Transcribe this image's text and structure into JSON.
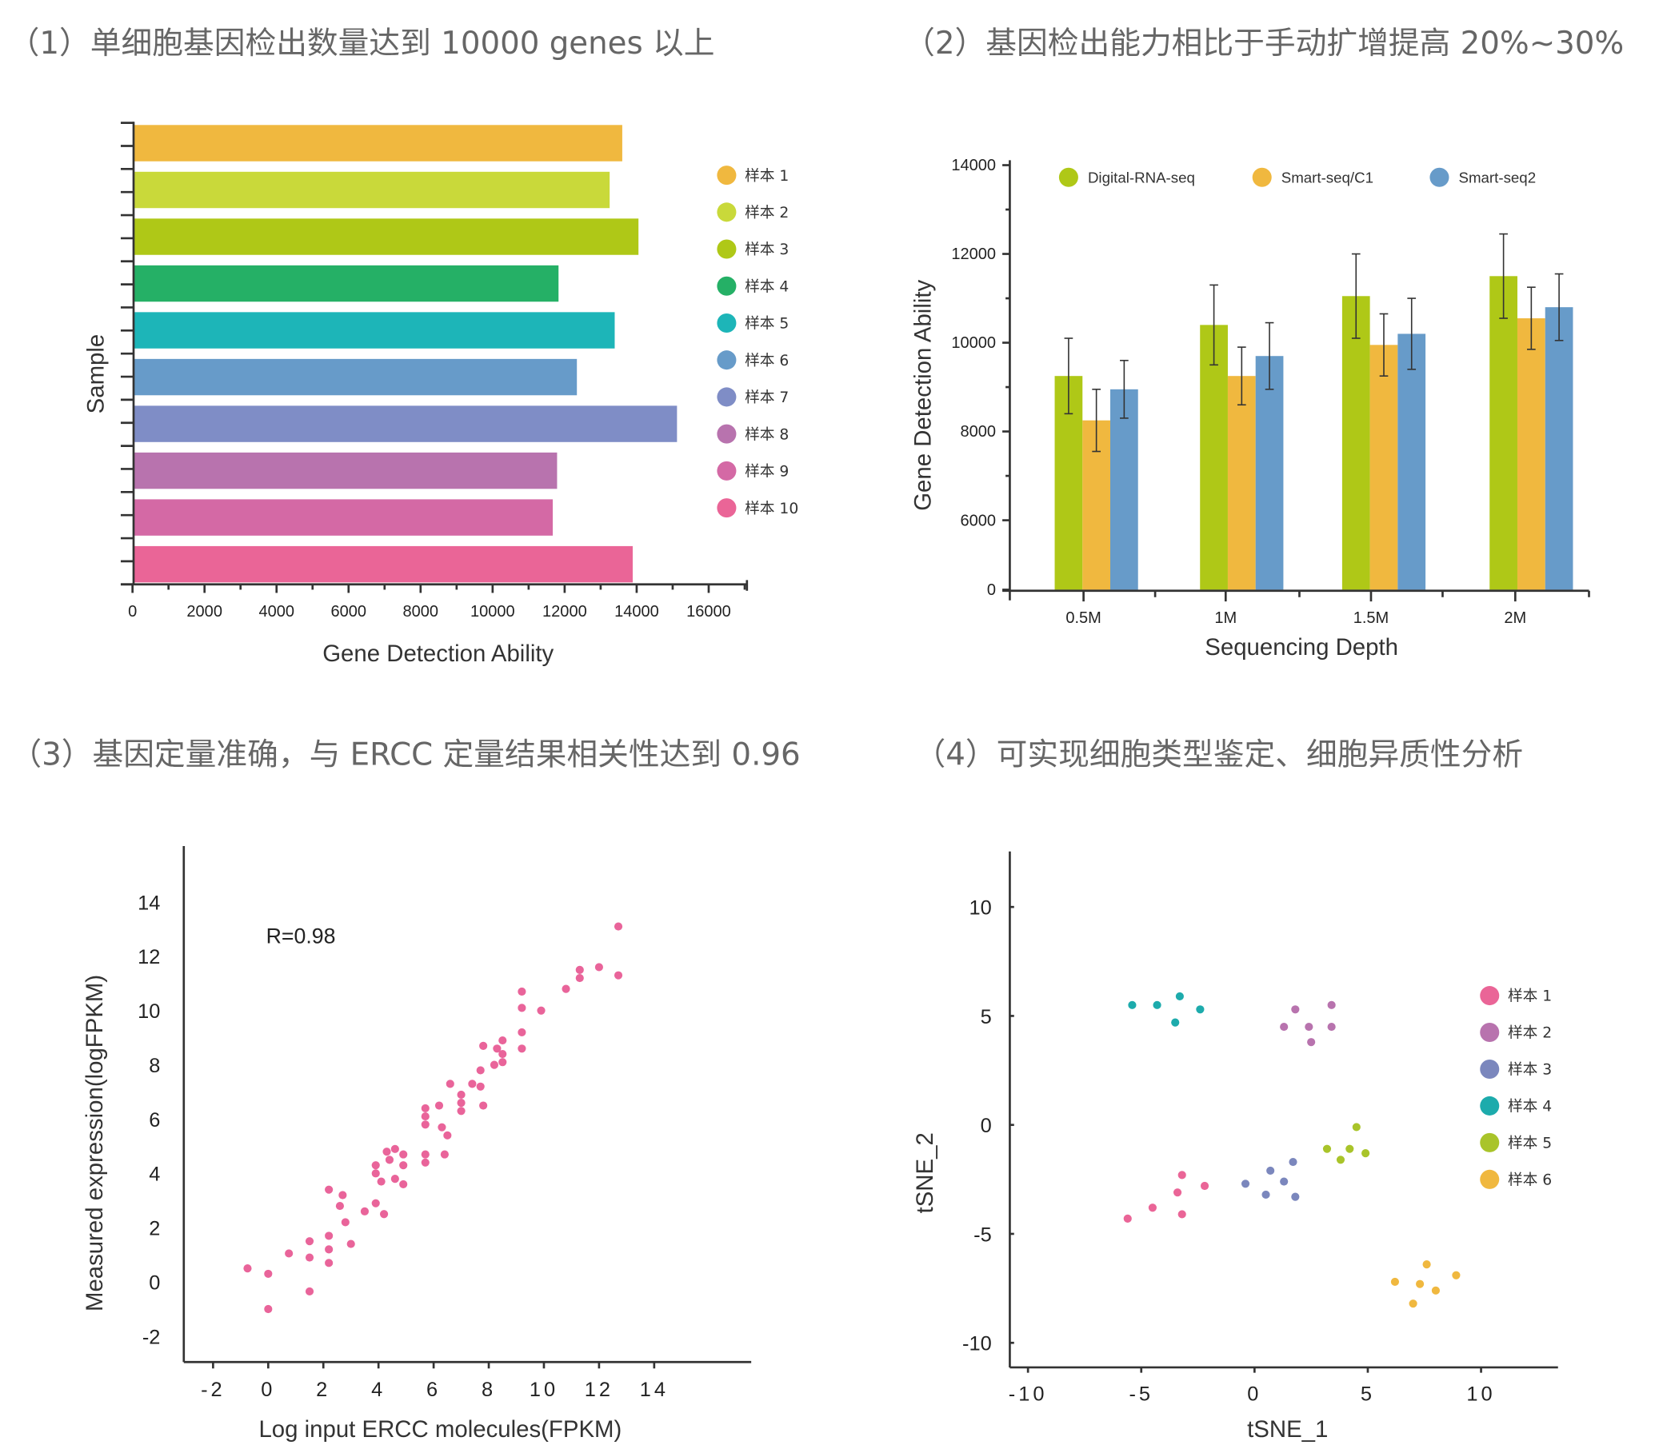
{
  "headings": [
    "（1）单细胞基因检出数量达到 10000 genes 以上",
    "（2）基因检出能力相比于手动扩增提高 20%~30%",
    "（3）基因定量准确，与 ERCC 定量结果相关性达到 0.96",
    "（4）可实现细胞类型鉴定、细胞异质性分析"
  ],
  "chart_data": [
    {
      "type": "bar",
      "orientation": "horizontal",
      "xlabel": "Gene Detection Ability",
      "ylabel": "Sample",
      "xlim": [
        0,
        17000
      ],
      "xticks": [
        0,
        2000,
        4000,
        6000,
        8000,
        10000,
        12000,
        14000,
        16000
      ],
      "legend_position": "right",
      "categories": [
        "样本 1",
        "样本 2",
        "样本 3",
        "样本 4",
        "样本 5",
        "样本 6",
        "样本 7",
        "样本 8",
        "样本 9",
        "样本 10"
      ],
      "values": [
        13600,
        13250,
        14050,
        11830,
        13390,
        12340,
        15120,
        11790,
        11670,
        13890
      ],
      "colors": [
        "#f0b83f",
        "#c9d93a",
        "#afc817",
        "#25b066",
        "#1db5b8",
        "#679bc9",
        "#7f8dc6",
        "#b873ae",
        "#d469a5",
        "#ea6597"
      ]
    },
    {
      "type": "bar",
      "xlabel": "Sequencing Depth",
      "ylabel": "Gene Detection Ability",
      "yaxis_break": [
        0,
        6000
      ],
      "ylim": [
        0,
        14000
      ],
      "yticks": [
        0,
        6000,
        8000,
        10000,
        12000,
        14000
      ],
      "legend_position": "top",
      "categories": [
        "0.5M",
        "1M",
        "1.5M",
        "2M"
      ],
      "series": [
        {
          "name": "Digital-RNA-seq",
          "color": "#afc817",
          "values": [
            9250,
            10400,
            11050,
            11500
          ],
          "errors": [
            850,
            900,
            950,
            950
          ]
        },
        {
          "name": "Smart-seq/C1",
          "color": "#f0b83f",
          "values": [
            8250,
            9250,
            9950,
            10550
          ],
          "errors": [
            700,
            650,
            700,
            700
          ]
        },
        {
          "name": "Smart-seq2",
          "color": "#679bc9",
          "values": [
            8950,
            9700,
            10200,
            10800
          ],
          "errors": [
            650,
            750,
            800,
            750
          ]
        }
      ]
    },
    {
      "type": "scatter",
      "xlabel": "Log input ERCC molecules(FPKM)",
      "ylabel": "Measured expression(logFPKM)",
      "annotation": "R=0.98",
      "xticks": [
        -2,
        0,
        2,
        4,
        6,
        8,
        10,
        12,
        14
      ],
      "yticks": [
        -2,
        0,
        2,
        4,
        6,
        8,
        10,
        12,
        14
      ],
      "color": "#e9649a",
      "points": [
        [
          -0.75,
          0.5
        ],
        [
          0,
          0.3
        ],
        [
          0,
          -1.0
        ],
        [
          0.75,
          1.05
        ],
        [
          1.5,
          1.5
        ],
        [
          1.5,
          0.9
        ],
        [
          1.5,
          -0.35
        ],
        [
          2.2,
          1.7
        ],
        [
          2.2,
          1.2
        ],
        [
          2.2,
          0.7
        ],
        [
          2.2,
          3.4
        ],
        [
          2.6,
          2.8
        ],
        [
          2.7,
          3.2
        ],
        [
          2.8,
          2.2
        ],
        [
          3.0,
          1.4
        ],
        [
          3.5,
          2.6
        ],
        [
          3.9,
          2.9
        ],
        [
          4.2,
          2.5
        ],
        [
          3.9,
          4.3
        ],
        [
          3.9,
          4.0
        ],
        [
          4.1,
          3.7
        ],
        [
          4.3,
          4.8
        ],
        [
          4.4,
          4.5
        ],
        [
          4.6,
          4.9
        ],
        [
          4.9,
          4.7
        ],
        [
          4.9,
          4.3
        ],
        [
          4.6,
          3.8
        ],
        [
          4.9,
          3.6
        ],
        [
          5.7,
          6.4
        ],
        [
          5.7,
          6.1
        ],
        [
          5.7,
          5.8
        ],
        [
          5.7,
          4.7
        ],
        [
          5.7,
          4.4
        ],
        [
          6.2,
          6.5
        ],
        [
          6.3,
          5.7
        ],
        [
          6.5,
          5.4
        ],
        [
          6.4,
          4.7
        ],
        [
          6.6,
          7.3
        ],
        [
          7.0,
          6.9
        ],
        [
          7.0,
          6.6
        ],
        [
          7.0,
          6.3
        ],
        [
          7.4,
          7.3
        ],
        [
          7.7,
          7.2
        ],
        [
          7.8,
          6.5
        ],
        [
          7.7,
          7.8
        ],
        [
          7.8,
          8.7
        ],
        [
          8.2,
          8.0
        ],
        [
          8.3,
          8.6
        ],
        [
          8.5,
          8.4
        ],
        [
          8.5,
          8.9
        ],
        [
          8.5,
          8.1
        ],
        [
          9.2,
          10.7
        ],
        [
          9.2,
          10.1
        ],
        [
          9.2,
          9.2
        ],
        [
          9.2,
          8.6
        ],
        [
          9.9,
          10.0
        ],
        [
          10.8,
          10.8
        ],
        [
          11.3,
          11.5
        ],
        [
          11.3,
          11.2
        ],
        [
          12.0,
          11.6
        ],
        [
          12.7,
          13.1
        ],
        [
          12.7,
          11.3
        ]
      ]
    },
    {
      "type": "scatter",
      "xlabel": "tSNE_1",
      "ylabel": "tSNE_2",
      "xticks": [
        -10,
        -5,
        0,
        5,
        10
      ],
      "yticks": [
        -10,
        -5,
        0,
        5,
        10
      ],
      "legend_position": "right",
      "series": [
        {
          "name": "样本 1",
          "color": "#ea6597",
          "points": [
            [
              -5.6,
              -4.3
            ],
            [
              -4.5,
              -3.8
            ],
            [
              -3.2,
              -2.3
            ],
            [
              -3.4,
              -3.1
            ],
            [
              -2.2,
              -2.8
            ],
            [
              -3.2,
              -4.1
            ]
          ]
        },
        {
          "name": "样本 2",
          "color": "#b873ae",
          "points": [
            [
              1.8,
              5.3
            ],
            [
              3.4,
              5.5
            ],
            [
              1.3,
              4.5
            ],
            [
              2.4,
              4.5
            ],
            [
              3.4,
              4.5
            ],
            [
              2.5,
              3.8
            ]
          ]
        },
        {
          "name": "样本 3",
          "color": "#7b87bd",
          "points": [
            [
              -0.4,
              -2.7
            ],
            [
              0.5,
              -3.2
            ],
            [
              0.7,
              -2.1
            ],
            [
              1.3,
              -2.6
            ],
            [
              1.7,
              -1.7
            ],
            [
              1.8,
              -3.3
            ]
          ]
        },
        {
          "name": "样本 4",
          "color": "#1dabac",
          "points": [
            [
              -5.4,
              5.5
            ],
            [
              -4.3,
              5.5
            ],
            [
              -3.3,
              5.9
            ],
            [
              -3.5,
              4.7
            ],
            [
              -2.4,
              5.3
            ]
          ]
        },
        {
          "name": "样本 5",
          "color": "#a9c42a",
          "points": [
            [
              3.2,
              -1.1
            ],
            [
              4.5,
              -0.1
            ],
            [
              4.2,
              -1.1
            ],
            [
              3.8,
              -1.6
            ],
            [
              4.9,
              -1.3
            ]
          ]
        },
        {
          "name": "样本 6",
          "color": "#f0b83f",
          "points": [
            [
              6.2,
              -7.2
            ],
            [
              7.3,
              -7.3
            ],
            [
              7.6,
              -6.4
            ],
            [
              8.0,
              -7.6
            ],
            [
              8.9,
              -6.9
            ],
            [
              7.0,
              -8.2
            ]
          ]
        }
      ]
    }
  ]
}
